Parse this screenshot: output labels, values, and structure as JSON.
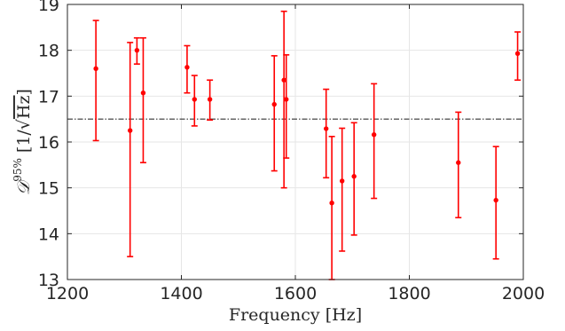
{
  "chart_data": {
    "type": "scatter",
    "xlabel": "Frequency [Hz]",
    "ylabel": {
      "symbol": "𝒟",
      "superscript": "95%",
      "units_open": "[1/",
      "sqrt_sign": "√",
      "units_radicand": "Hz",
      "units_close": "]"
    },
    "xlim": [
      1200,
      2000
    ],
    "ylim": [
      13,
      19
    ],
    "xticks": [
      "1200",
      "1400",
      "1600",
      "1800",
      "2000"
    ],
    "yticks": [
      "13",
      "14",
      "15",
      "16",
      "17",
      "18",
      "19"
    ],
    "grid": true,
    "colors": {
      "points": "#ff0000",
      "reference_line": "#333333",
      "grid": "#e6e6e6",
      "axes": "#262626"
    },
    "reference_line": {
      "y": 16.5,
      "style": "dash-dot"
    },
    "series": [
      {
        "points": [
          {
            "x": 1250,
            "y": 17.6,
            "ylo": 16.03,
            "yhi": 18.65
          },
          {
            "x": 1310,
            "y": 16.25,
            "ylo": 13.5,
            "yhi": 18.17
          },
          {
            "x": 1322,
            "y": 18.0,
            "ylo": 17.7,
            "yhi": 18.27
          },
          {
            "x": 1333,
            "y": 17.07,
            "ylo": 15.55,
            "yhi": 18.27
          },
          {
            "x": 1410,
            "y": 17.63,
            "ylo": 17.07,
            "yhi": 18.1
          },
          {
            "x": 1423,
            "y": 16.93,
            "ylo": 16.35,
            "yhi": 17.45
          },
          {
            "x": 1450,
            "y": 16.93,
            "ylo": 16.48,
            "yhi": 17.35
          },
          {
            "x": 1563,
            "y": 16.82,
            "ylo": 15.37,
            "yhi": 17.88
          },
          {
            "x": 1580,
            "y": 17.35,
            "ylo": 15.0,
            "yhi": 18.85
          },
          {
            "x": 1584,
            "y": 16.93,
            "ylo": 15.65,
            "yhi": 17.9
          },
          {
            "x": 1654,
            "y": 16.29,
            "ylo": 15.22,
            "yhi": 17.15
          },
          {
            "x": 1664,
            "y": 14.67,
            "ylo": 13.0,
            "yhi": 16.12
          },
          {
            "x": 1682,
            "y": 15.15,
            "ylo": 13.62,
            "yhi": 16.3
          },
          {
            "x": 1703,
            "y": 15.25,
            "ylo": 13.97,
            "yhi": 16.42
          },
          {
            "x": 1738,
            "y": 16.16,
            "ylo": 14.77,
            "yhi": 17.27
          },
          {
            "x": 1886,
            "y": 15.55,
            "ylo": 14.35,
            "yhi": 16.65
          },
          {
            "x": 1952,
            "y": 14.73,
            "ylo": 13.45,
            "yhi": 15.9
          },
          {
            "x": 1990,
            "y": 17.93,
            "ylo": 17.35,
            "yhi": 18.4
          }
        ]
      }
    ]
  }
}
